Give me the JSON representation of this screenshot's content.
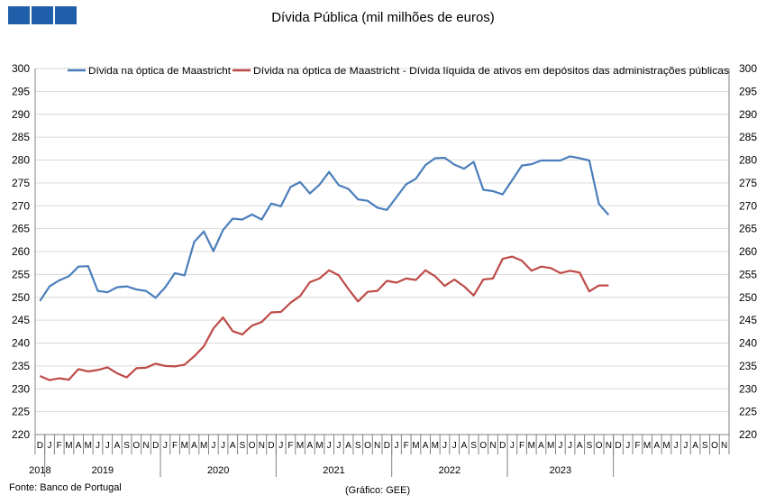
{
  "header": {
    "title": "Dívida Pública (mil milhões de euros)",
    "logo_color": "#1f5ea8"
  },
  "footer": {
    "source": "Fonte: Banco de Portugal",
    "credit": "(Gráfico: GEE)"
  },
  "chart_data": {
    "type": "line",
    "title": "Dívida Pública (mil milhões de euros)",
    "ylim": [
      220,
      300
    ],
    "ytick_step": 5,
    "grid": true,
    "legend_position": "top",
    "month_labels": [
      "D",
      "J",
      "F",
      "M",
      "A",
      "M",
      "J",
      "J",
      "A",
      "S",
      "O",
      "N",
      "D",
      "J",
      "F",
      "M",
      "A",
      "M",
      "J",
      "J",
      "A",
      "S",
      "O",
      "N",
      "D",
      "J",
      "F",
      "M",
      "A",
      "M",
      "J",
      "J",
      "A",
      "S",
      "O",
      "N",
      "D",
      "J",
      "F",
      "M",
      "A",
      "M",
      "J",
      "J",
      "A",
      "S",
      "O",
      "N",
      "D",
      "J",
      "F",
      "M",
      "A",
      "M",
      "J",
      "J",
      "A",
      "S",
      "O",
      "N",
      "D",
      "J",
      "F",
      "M",
      "A",
      "M",
      "J",
      "J",
      "A",
      "S",
      "O",
      "N"
    ],
    "year_labels": [
      {
        "label": "2018",
        "start": 0,
        "end": 0
      },
      {
        "label": "2019",
        "start": 1,
        "end": 12
      },
      {
        "label": "2020",
        "start": 13,
        "end": 24
      },
      {
        "label": "2021",
        "start": 25,
        "end": 36
      },
      {
        "label": "2022",
        "start": 37,
        "end": 48
      },
      {
        "label": "2023",
        "start": 49,
        "end": 59
      }
    ],
    "series": [
      {
        "name": "Dívida na óptica de Maastricht",
        "color": "#4a7ebb",
        "values": [
          249.2,
          252.4,
          253.7,
          254.6,
          256.7,
          256.8,
          251.4,
          251.1,
          252.2,
          252.4,
          251.7,
          251.4,
          249.9,
          252.2,
          255.3,
          254.8,
          262.1,
          264.4,
          260.1,
          264.7,
          267.2,
          267.0,
          268.1,
          267.0,
          270.5,
          269.9,
          274.1,
          275.2,
          272.7,
          274.6,
          277.4,
          274.5,
          273.7,
          271.4,
          271.1,
          269.6,
          269.1,
          271.9,
          274.7,
          275.9,
          278.9,
          280.4,
          280.5,
          279.0,
          278.1,
          279.6,
          273.5,
          273.2,
          272.5,
          275.6,
          278.8,
          279.1,
          279.9,
          279.9,
          279.9,
          280.8,
          280.4,
          279.9,
          270.4,
          268.0
        ]
      },
      {
        "name": "Dívida na óptica de Maastricht - Dívida líquida de ativos em depósitos das administrações públicas",
        "color": "#be4b48",
        "values": [
          232.8,
          231.9,
          232.3,
          232.0,
          234.3,
          233.8,
          234.1,
          234.7,
          233.4,
          232.5,
          234.5,
          234.6,
          235.5,
          235.0,
          234.9,
          235.3,
          237.1,
          239.3,
          243.2,
          245.6,
          242.6,
          241.9,
          243.8,
          244.6,
          246.7,
          246.8,
          248.8,
          250.3,
          253.3,
          254.1,
          255.9,
          254.8,
          251.8,
          249.1,
          251.2,
          251.4,
          253.6,
          253.2,
          254.1,
          253.8,
          255.9,
          254.6,
          252.5,
          253.9,
          252.4,
          250.4,
          253.9,
          254.1,
          258.4,
          258.9,
          258.0,
          255.8,
          256.7,
          256.4,
          255.3,
          255.8,
          255.4,
          251.3,
          252.6,
          252.6
        ]
      }
    ]
  }
}
